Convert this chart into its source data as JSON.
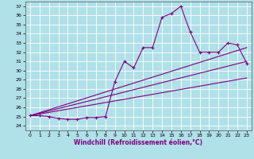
{
  "xlabel": "Windchill (Refroidissement éolien,°C)",
  "background_color": "#b0e0e8",
  "line_color": "#800080",
  "xlim": [
    -0.5,
    23.5
  ],
  "ylim": [
    23.5,
    37.5
  ],
  "yticks": [
    24,
    25,
    26,
    27,
    28,
    29,
    30,
    31,
    32,
    33,
    34,
    35,
    36,
    37
  ],
  "xticks": [
    0,
    1,
    2,
    3,
    4,
    5,
    6,
    7,
    8,
    9,
    10,
    11,
    12,
    13,
    14,
    15,
    16,
    17,
    18,
    19,
    20,
    21,
    22,
    23
  ],
  "series1_x": [
    0,
    1,
    2,
    3,
    4,
    5,
    6,
    7,
    8,
    9,
    10,
    11,
    12,
    13,
    14,
    15,
    16,
    17,
    18,
    19,
    20,
    21,
    22,
    23
  ],
  "series1_y": [
    25.1,
    25.1,
    25.0,
    24.8,
    24.7,
    24.7,
    24.9,
    24.9,
    25.0,
    28.8,
    31.0,
    30.3,
    32.5,
    32.5,
    35.8,
    36.2,
    37.0,
    34.2,
    32.0,
    32.0,
    32.0,
    33.0,
    32.8,
    30.8
  ],
  "line1_x": [
    0,
    23
  ],
  "line1_y": [
    25.1,
    32.5
  ],
  "line2_x": [
    0,
    23
  ],
  "line2_y": [
    25.1,
    31.0
  ],
  "line3_x": [
    0,
    23
  ],
  "line3_y": [
    25.1,
    29.2
  ]
}
